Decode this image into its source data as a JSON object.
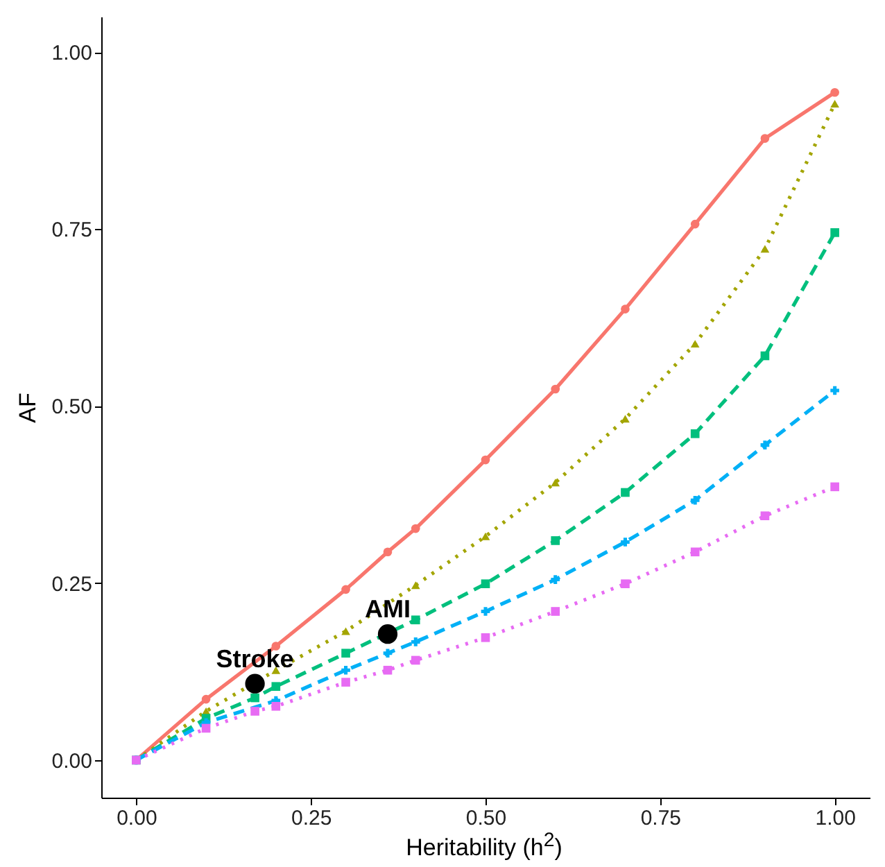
{
  "chart_data": {
    "type": "line",
    "xlabel": "Heritability (h$^{2}$)",
    "ylabel": "AF",
    "xlim": [
      -0.05,
      1.05
    ],
    "ylim": [
      -0.053,
      1.05
    ],
    "xticks": [
      {
        "value": 0,
        "label": "0.00"
      },
      0.25,
      {
        "value": 0.5,
        "label": "0.50"
      },
      0.75,
      {
        "value": 1,
        "label": "1.00"
      }
    ],
    "yticks": [
      {
        "value": 0,
        "label": "0.00"
      },
      0.25,
      {
        "value": 0.5,
        "label": "0.50"
      },
      0.75,
      {
        "value": 1,
        "label": "1.00"
      }
    ],
    "grid": false,
    "series": [
      {
        "color": "#f8766d",
        "marker": "circle",
        "line_style": "solid",
        "x": [
          0,
          0.1,
          0.2,
          0.3,
          0.36,
          0.4,
          0.5,
          0.6,
          0.7,
          0.8,
          0.9,
          1.0
        ],
        "values": [
          0,
          0.086,
          0.161,
          0.241,
          0.294,
          0.327,
          0.424,
          0.524,
          0.637,
          0.757,
          0.878,
          0.943
        ]
      },
      {
        "color": "#a3a500",
        "marker": "triangle",
        "line_style": "dotted",
        "x": [
          0,
          0.1,
          0.2,
          0.3,
          0.36,
          0.4,
          0.5,
          0.6,
          0.7,
          0.8,
          0.9,
          1.0
        ],
        "values": [
          0,
          0.069,
          0.127,
          0.182,
          null,
          0.247,
          0.316,
          0.392,
          0.482,
          0.588,
          0.722,
          0.927
        ]
      },
      {
        "color": "#00bf7d",
        "marker": "square",
        "line_style": "dashed",
        "x": [
          0,
          0.1,
          0.17,
          0.2,
          0.3,
          0.4,
          0.5,
          0.6,
          0.7,
          0.8,
          0.9,
          1.0
        ],
        "values": [
          0,
          0.059,
          0.088,
          0.104,
          0.151,
          0.198,
          0.249,
          0.31,
          0.378,
          0.461,
          0.571,
          0.745
        ]
      },
      {
        "color": "#00b0f6",
        "marker": "cross",
        "line_style": "dashed",
        "x": [
          0,
          0.1,
          0.17,
          0.2,
          0.3,
          0.36,
          0.4,
          0.5,
          0.6,
          0.7,
          0.8,
          0.9,
          1.0
        ],
        "values": [
          0,
          0.053,
          null,
          0.084,
          0.127,
          0.151,
          0.167,
          0.21,
          0.255,
          0.308,
          0.367,
          0.445,
          0.522
        ]
      },
      {
        "color": "#e76bf3",
        "marker": "square",
        "line_style": "dotted",
        "x": [
          0,
          0.1,
          0.17,
          0.2,
          0.3,
          0.36,
          0.4,
          0.5,
          0.6,
          0.7,
          0.8,
          0.9,
          1.0
        ],
        "values": [
          0,
          0.045,
          0.069,
          0.076,
          0.11,
          0.127,
          0.141,
          0.173,
          0.21,
          0.249,
          0.294,
          0.345,
          0.386
        ]
      },
      {
        "type": "scatter",
        "color": "#000000",
        "marker": "circle",
        "x": [
          0.17,
          0.36
        ],
        "values": [
          0.108,
          0.178
        ]
      }
    ],
    "annotations": [
      {
        "text": "Stroke",
        "x": 0.17,
        "y": 0.108
      },
      {
        "text": "AMI",
        "x": 0.36,
        "y": 0.178
      }
    ]
  }
}
